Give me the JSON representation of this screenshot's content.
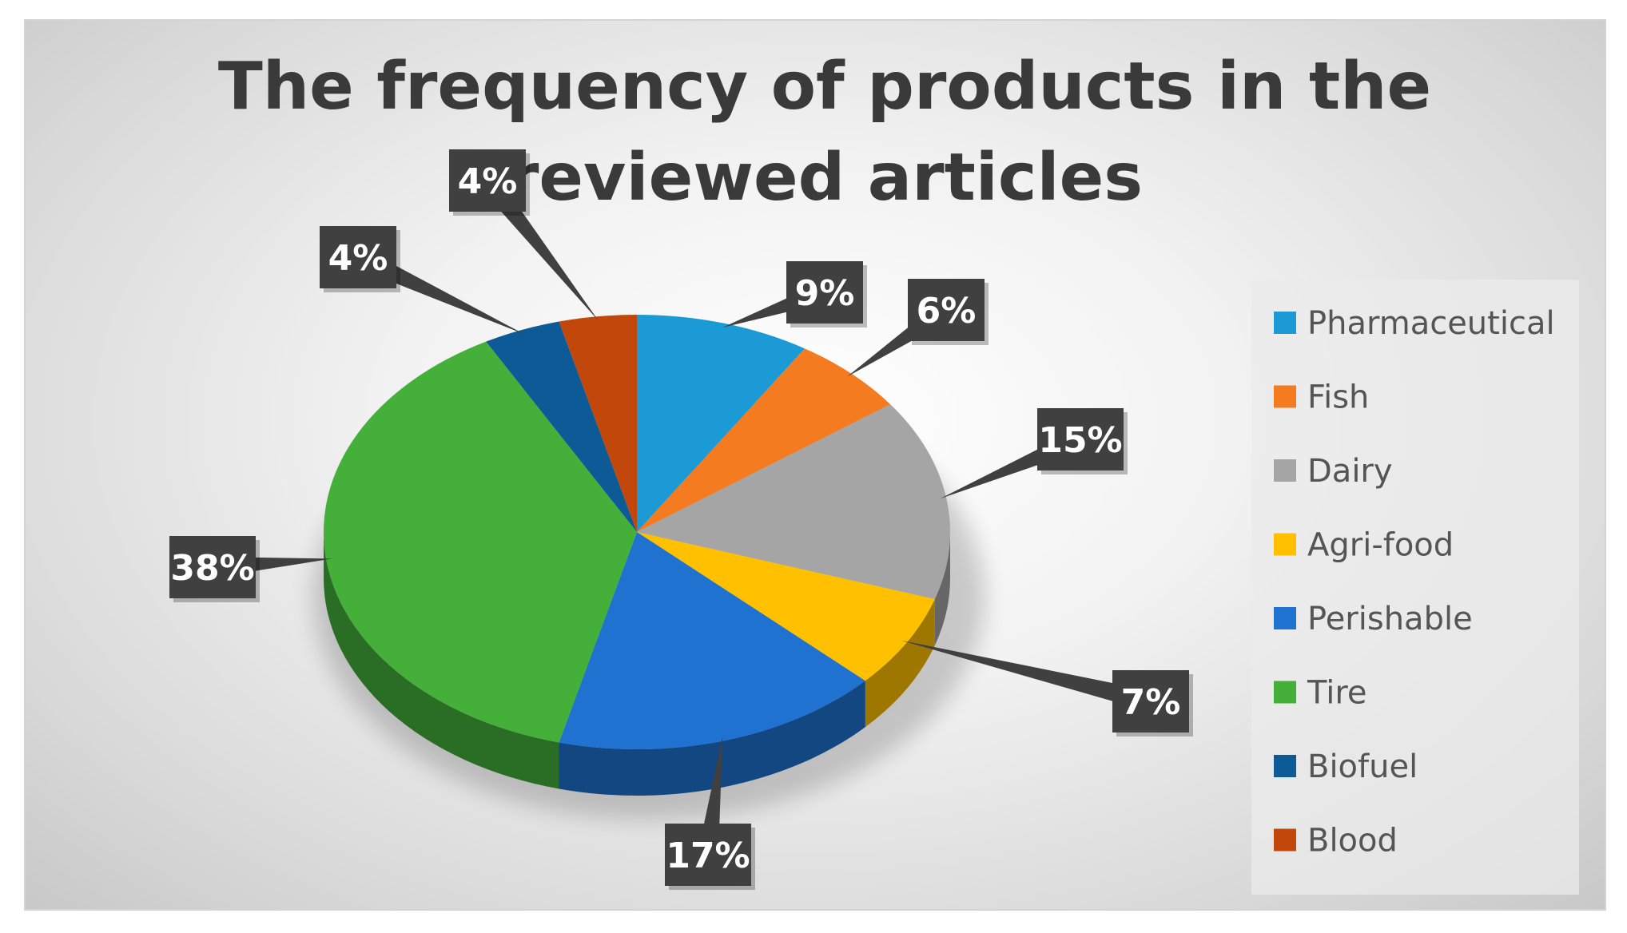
{
  "chart_data": {
    "type": "pie",
    "title": "The frequency of products in the reviewed articles",
    "title_lines": [
      "The frequency of products in the",
      "reviewed articles"
    ],
    "style": "3d",
    "legend_position": "right",
    "categories": [
      "Pharmaceutical",
      "Fish",
      "Dairy",
      "Agri-food",
      "Perishable",
      "Tire",
      "Biofuel",
      "Blood"
    ],
    "values": [
      9,
      6,
      15,
      7,
      17,
      38,
      4,
      4
    ],
    "data_labels": [
      "9%",
      "6%",
      "15%",
      "7%",
      "17%",
      "38%",
      "4%",
      "4%"
    ],
    "colors": [
      "#1b9ad6",
      "#f47b20",
      "#a5a5a5",
      "#ffc000",
      "#1f72d0",
      "#44b03a",
      "#0c5a96",
      "#c2470b"
    ]
  }
}
